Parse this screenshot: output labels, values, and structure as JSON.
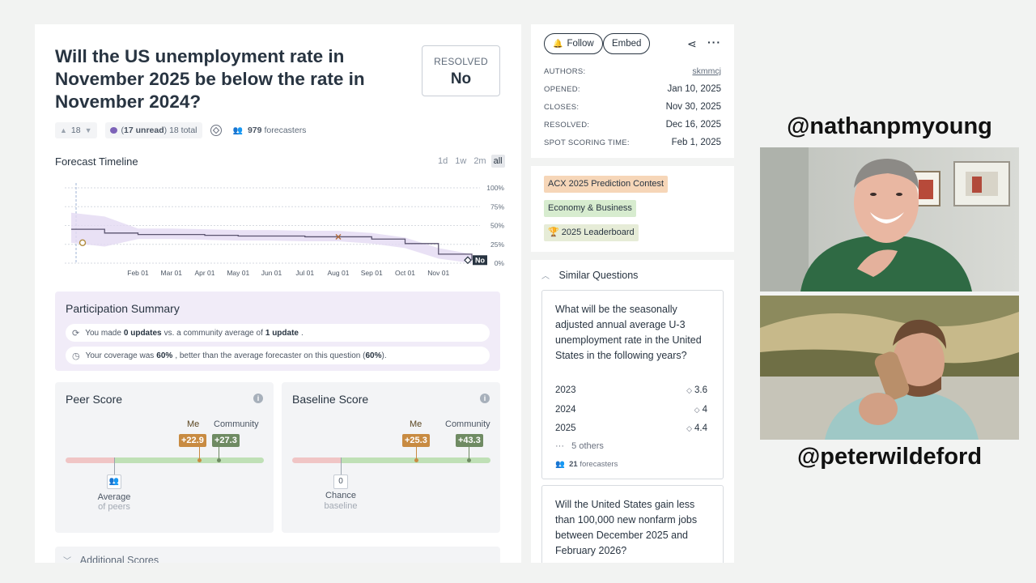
{
  "question": {
    "title": "Will the US unemployment rate in November 2025 be below the rate in November 2024?",
    "resolved_label": "RESOLVED",
    "resolved_value": "No"
  },
  "meta": {
    "votes": "18",
    "unread": "17 unread",
    "total": "18 total",
    "forecasters": "979",
    "forecasters_label": "forecasters"
  },
  "timeline": {
    "title": "Forecast Timeline",
    "ranges": [
      "1d",
      "1w",
      "2m",
      "all"
    ],
    "active_range": "all"
  },
  "chart_data": {
    "type": "line",
    "x": [
      "Jan 10",
      "Jan 20",
      "Feb 01",
      "Mar 01",
      "Apr 01",
      "May 01",
      "Jun 01",
      "Jul 01",
      "Aug 01",
      "Sep 01",
      "Oct 01",
      "Nov 01",
      "Nov 30"
    ],
    "series": [
      {
        "values": [
          45,
          40,
          38,
          38,
          37,
          36,
          36,
          35,
          35,
          32,
          26,
          12,
          4
        ]
      }
    ],
    "xticks": [
      "Feb 01",
      "Mar 01",
      "Apr 01",
      "May 01",
      "Jun 01",
      "Jul 01",
      "Aug 01",
      "Sep 01",
      "Oct 01",
      "Nov 01"
    ],
    "yticks": [
      "100%",
      "75%",
      "50%",
      "25%",
      "0%"
    ],
    "ylim": [
      0,
      100
    ],
    "resolution_label": "No",
    "grid": true,
    "colors": {
      "line": "#5b5470",
      "band": "#e3d9f2",
      "marker_me": "#b08a3a"
    }
  },
  "participation": {
    "title": "Participation Summary",
    "row1_a": "You made",
    "row1_b": "0 updates",
    "row1_c": "vs. a community average of",
    "row1_d": "1 update",
    "row1_e": ".",
    "row2_a": "Your coverage was",
    "row2_b": "60%",
    "row2_c": ", better than the average forecaster on this question (",
    "row2_d": "60%",
    "row2_e": ")."
  },
  "peer_score": {
    "title": "Peer Score",
    "me_label": "Me",
    "community_label": "Community",
    "me_value": "+22.9",
    "community_value": "+27.3",
    "ref_label": "Average",
    "ref_sub": "of peers"
  },
  "baseline_score": {
    "title": "Baseline Score",
    "me_label": "Me",
    "community_label": "Community",
    "me_value": "+25.3",
    "community_value": "+43.3",
    "ref_box": "0",
    "ref_label": "Chance",
    "ref_sub": "baseline"
  },
  "additional_scores": "Additional Scores",
  "sidebar": {
    "follow": "Follow",
    "embed": "Embed",
    "authors_key": "AUTHORS:",
    "authors_val": "skmmcj",
    "opened_key": "OPENED:",
    "opened_val": "Jan 10, 2025",
    "closes_key": "CLOSES:",
    "closes_val": "Nov 30, 2025",
    "resolved_key": "RESOLVED:",
    "resolved_val": "Dec 16, 2025",
    "spot_key": "SPOT SCORING TIME:",
    "spot_val": "Feb 1, 2025"
  },
  "tags": [
    "ACX 2025 Prediction Contest",
    "Economy & Business",
    "🏆 2025 Leaderboard"
  ],
  "similar": {
    "title": "Similar Questions",
    "q1_title": "What will be the seasonally adjusted annual average U-3 unemployment rate in the United States in the following years?",
    "q1_rows": [
      {
        "year": "2023",
        "value": "3.6"
      },
      {
        "year": "2024",
        "value": "4"
      },
      {
        "year": "2025",
        "value": "4.4"
      }
    ],
    "q1_others": "5 others",
    "q1_forecasters": "21",
    "q1_forecasters_label": "forecasters",
    "q2_title": "Will the United States gain less than 100,000 new nonfarm jobs between December 2025 and February 2026?"
  },
  "overlay": {
    "handle_top": "@nathanpmyoung",
    "handle_bottom": "@peterwildeford"
  }
}
